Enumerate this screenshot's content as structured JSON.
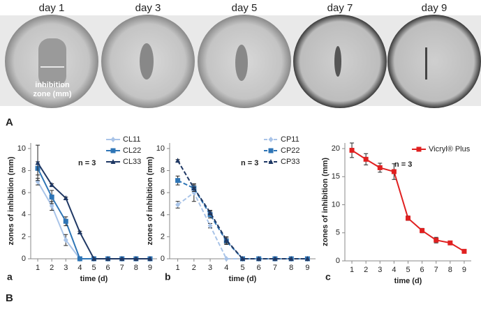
{
  "panel_a": {
    "letter": "A",
    "days": [
      "day 1",
      "day 3",
      "day 5",
      "day 7",
      "day 9"
    ],
    "annotation": "inhibition\nzone (mm)"
  },
  "panel_b_letter": "B",
  "chart_data": [
    {
      "type": "line",
      "panel_label": "a",
      "annotation": "n = 3",
      "xlabel": "time (d)",
      "ylabel": "zones of inhibition (mm)",
      "x": [
        1,
        2,
        3,
        4,
        5,
        6,
        7,
        8,
        9
      ],
      "xlim": [
        0.5,
        9.5
      ],
      "xticks": [
        1,
        2,
        3,
        4,
        5,
        6,
        7,
        8,
        9
      ],
      "ylim": [
        0,
        10.5
      ],
      "yticks": [
        0,
        2,
        4,
        6,
        8,
        10
      ],
      "legend": "upper right",
      "series": [
        {
          "name": "CL11",
          "color": "#a9c4e8",
          "marker": "diamond",
          "dashed": false,
          "values": [
            7.0,
            4.8,
            1.7,
            0,
            0,
            0,
            0,
            0,
            0
          ],
          "errors": [
            0.3,
            0.4,
            0.5,
            null,
            null,
            null,
            null,
            null,
            null
          ]
        },
        {
          "name": "CL22",
          "color": "#2e75b6",
          "marker": "square",
          "dashed": false,
          "values": [
            8.2,
            5.6,
            3.4,
            0,
            0,
            0,
            0,
            0,
            0
          ],
          "errors": [
            0.6,
            0.6,
            0.4,
            null,
            null,
            null,
            null,
            null,
            null
          ]
        },
        {
          "name": "CL33",
          "color": "#1f3864",
          "marker": "triangle",
          "dashed": false,
          "values": [
            8.7,
            6.7,
            5.5,
            2.4,
            0,
            0,
            0,
            0,
            0
          ],
          "errors": [
            1.6,
            0.1,
            0.1,
            0.1,
            null,
            null,
            null,
            null,
            null
          ]
        }
      ]
    },
    {
      "type": "line",
      "panel_label": "b",
      "annotation": "n = 3",
      "xlabel": "time (d)",
      "ylabel": "zones of inhibition (mm)",
      "x": [
        1,
        2,
        3,
        4,
        5,
        6,
        7,
        8,
        9
      ],
      "xlim": [
        0.5,
        9.5
      ],
      "xticks": [
        1,
        2,
        3,
        4,
        5,
        6,
        7,
        8,
        9
      ],
      "ylim": [
        0,
        10.5
      ],
      "yticks": [
        0,
        2,
        4,
        6,
        8,
        10
      ],
      "legend": "upper right",
      "series": [
        {
          "name": "CP11",
          "color": "#a9c4e8",
          "marker": "diamond",
          "dashed": true,
          "values": [
            4.9,
            6.0,
            3.0,
            0,
            0,
            0,
            0,
            0,
            0
          ],
          "errors": [
            0.3,
            0.8,
            0.2,
            null,
            null,
            null,
            null,
            null,
            null
          ]
        },
        {
          "name": "CP22",
          "color": "#2e75b6",
          "marker": "square",
          "dashed": true,
          "values": [
            7.1,
            6.4,
            4.0,
            1.6,
            0,
            0,
            0,
            0,
            0
          ],
          "errors": [
            0.4,
            0.3,
            0.3,
            0.3,
            null,
            null,
            null,
            null,
            null
          ]
        },
        {
          "name": "CP33",
          "color": "#1f3864",
          "marker": "triangle",
          "dashed": true,
          "values": [
            8.9,
            6.4,
            4.2,
            1.7,
            0,
            0,
            0,
            0,
            0
          ],
          "errors": [
            0.1,
            0.1,
            0.2,
            0.3,
            null,
            null,
            null,
            null,
            null
          ]
        }
      ]
    },
    {
      "type": "line",
      "panel_label": "c",
      "annotation": "n = 3",
      "xlabel": "time (d)",
      "ylabel": "zones of inhibition (mm)",
      "x": [
        1,
        2,
        3,
        4,
        5,
        6,
        7,
        8,
        9
      ],
      "xlim": [
        0.5,
        9.5
      ],
      "xticks": [
        1,
        2,
        3,
        4,
        5,
        6,
        7,
        8,
        9
      ],
      "ylim": [
        0,
        21
      ],
      "yticks": [
        0,
        5,
        10,
        15,
        20
      ],
      "legend": "upper right",
      "series": [
        {
          "name": "Vicryl® Plus",
          "color": "#e02020",
          "marker": "square",
          "dashed": false,
          "values": [
            19.7,
            18.1,
            16.6,
            15.9,
            7.6,
            5.4,
            3.7,
            3.2,
            1.7
          ],
          "errors": [
            1.3,
            1.0,
            0.8,
            1.4,
            0.4,
            0.4,
            0.5,
            0.3,
            0.3
          ]
        }
      ]
    }
  ]
}
